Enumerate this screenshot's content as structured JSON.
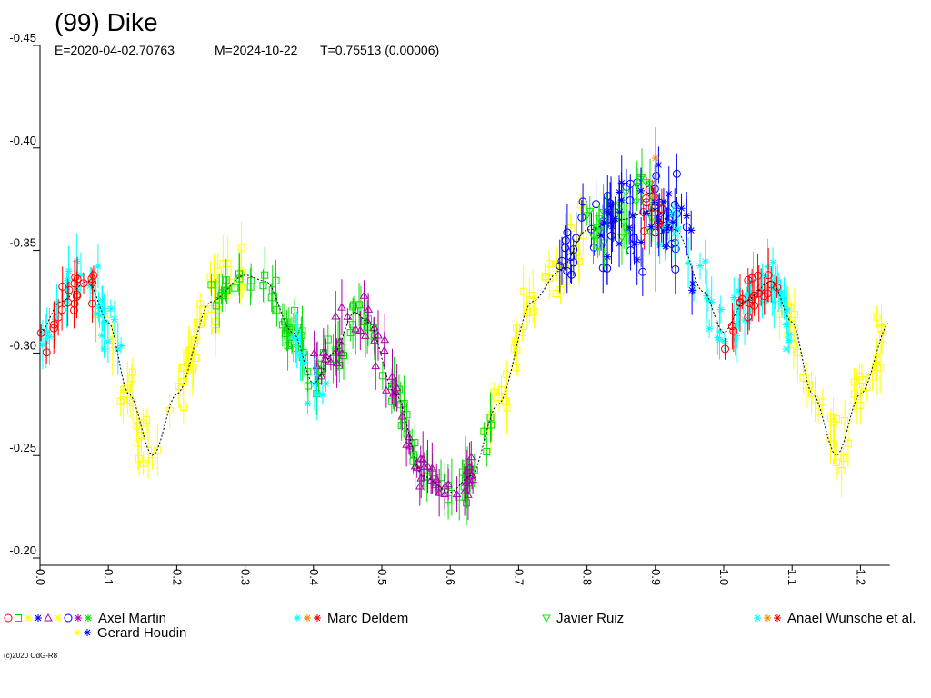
{
  "chart_data": {
    "type": "scatter",
    "title": "(99) Dike",
    "subtitle": {
      "epoch": "E=2020-04-02.70763",
      "mid": "M=2024-10-22",
      "period": "T=0.75513 (0.00006)"
    },
    "xlabel": "",
    "ylabel": "",
    "xlim": [
      0.0,
      1.243
    ],
    "ylim": [
      -0.45,
      -0.2
    ],
    "y_inverted": true,
    "grid": false,
    "xticks": [
      "0.0",
      "0.1",
      "0.2",
      "0.3",
      "0.4",
      "0.5",
      "0.6",
      "0.7",
      "0.8",
      "0.9",
      "1.0",
      "1.1",
      "1.2"
    ],
    "yticks": [
      "-0.45",
      "-0.40",
      "-0.35",
      "-0.30",
      "-0.25",
      "-0.20"
    ],
    "fit_curve": {
      "phase": [
        0.0,
        0.03,
        0.07,
        0.1,
        0.13,
        0.165,
        0.2,
        0.25,
        0.3,
        0.33,
        0.37,
        0.4,
        0.43,
        0.46,
        0.48,
        0.52,
        0.56,
        0.6,
        0.63,
        0.67,
        0.72,
        0.76,
        0.8,
        0.85,
        0.9,
        0.93,
        0.97,
        1.0,
        1.03,
        1.07,
        1.1,
        1.13,
        1.165,
        1.2,
        1.243
      ],
      "mag": [
        -0.31,
        -0.325,
        -0.335,
        -0.315,
        -0.28,
        -0.25,
        -0.28,
        -0.325,
        -0.338,
        -0.335,
        -0.31,
        -0.285,
        -0.3,
        -0.32,
        -0.315,
        -0.28,
        -0.24,
        -0.232,
        -0.24,
        -0.275,
        -0.325,
        -0.34,
        -0.36,
        -0.365,
        -0.37,
        -0.36,
        -0.33,
        -0.31,
        -0.325,
        -0.335,
        -0.315,
        -0.28,
        -0.25,
        -0.28,
        -0.315
      ]
    },
    "series": [
      {
        "name": "Axel Martin",
        "color": "#ffff00",
        "symbol": "square",
        "ranges": [
          [
            0.08,
            0.3
          ],
          [
            0.65,
            0.8
          ],
          [
            1.08,
            1.243
          ]
        ],
        "scatter": 0.008
      },
      {
        "name": "Axel Martin",
        "color": "#00dd00",
        "symbol": "square",
        "ranges": [
          [
            0.25,
            0.45
          ],
          [
            0.45,
            0.66
          ]
        ],
        "scatter": 0.005
      },
      {
        "name": "Axel Martin",
        "color": "#aa00aa",
        "symbol": "triangle",
        "ranges": [
          [
            0.4,
            0.64
          ]
        ],
        "scatter": 0.007
      },
      {
        "name": "Axel Martin",
        "color": "#0000ff",
        "symbol": "hexagon",
        "ranges": [
          [
            0.76,
            0.95
          ]
        ],
        "scatter": 0.012
      },
      {
        "name": "Marc Deldem",
        "color": "#00ffff",
        "symbol": "star",
        "ranges": [
          [
            0.0,
            0.12
          ],
          [
            0.37,
            0.42
          ],
          [
            0.9,
            1.1
          ]
        ],
        "scatter": 0.008
      },
      {
        "name": "Marc Deldem",
        "color": "#ff0000",
        "symbol": "circle",
        "ranges": [
          [
            0.0,
            0.08
          ],
          [
            0.88,
            0.92
          ],
          [
            1.0,
            1.08
          ]
        ],
        "scatter": 0.006
      },
      {
        "name": "Javier Ruiz",
        "color": "#00ee00",
        "symbol": "triangle-down",
        "ranges": [
          [
            0.8,
            0.9
          ]
        ],
        "scatter": 0.01
      },
      {
        "name": "Gerard Houdin",
        "color": "#0000ff",
        "symbol": "asterisk",
        "ranges": [
          [
            0.82,
            0.96
          ]
        ],
        "scatter": 0.01
      }
    ],
    "legend": {
      "placement": "bottom",
      "entries": [
        {
          "label": "Axel Martin",
          "symbols": [
            [
              "circle",
              "#ff0000"
            ],
            [
              "square",
              "#00dd00"
            ],
            [
              "diamond",
              "#ffff00"
            ],
            [
              "bowtie",
              "#0000ff"
            ],
            [
              "triangle",
              "#aa00aa"
            ],
            [
              "star",
              "#ffff00"
            ],
            [
              "hexagon",
              "#0000ff"
            ],
            [
              "asterisk",
              "#aa00aa"
            ],
            [
              "hourglass",
              "#00dd00"
            ]
          ]
        },
        {
          "label": "Marc Deldem",
          "symbols": [
            [
              "star",
              "#00ffff"
            ],
            [
              "cross",
              "#ff8800"
            ],
            [
              "pentagon",
              "#ff0000"
            ]
          ]
        },
        {
          "label": "Javier Ruiz",
          "symbols": [
            [
              "triangle-down",
              "#00ee00"
            ]
          ]
        },
        {
          "label": "Anael Wunsche et al.",
          "symbols": [
            [
              "asterisk",
              "#00ffff"
            ],
            [
              "triangle-left",
              "#ff8800"
            ],
            [
              "triangle-right",
              "#ff0000"
            ]
          ]
        },
        {
          "label": "Gerard Houdin",
          "symbols": [
            [
              "bowtie",
              "#ffff00"
            ],
            [
              "asterisk",
              "#0000ff"
            ]
          ]
        }
      ]
    }
  },
  "footer": {
    "copyright": "(c)2020 OdG-R8"
  }
}
